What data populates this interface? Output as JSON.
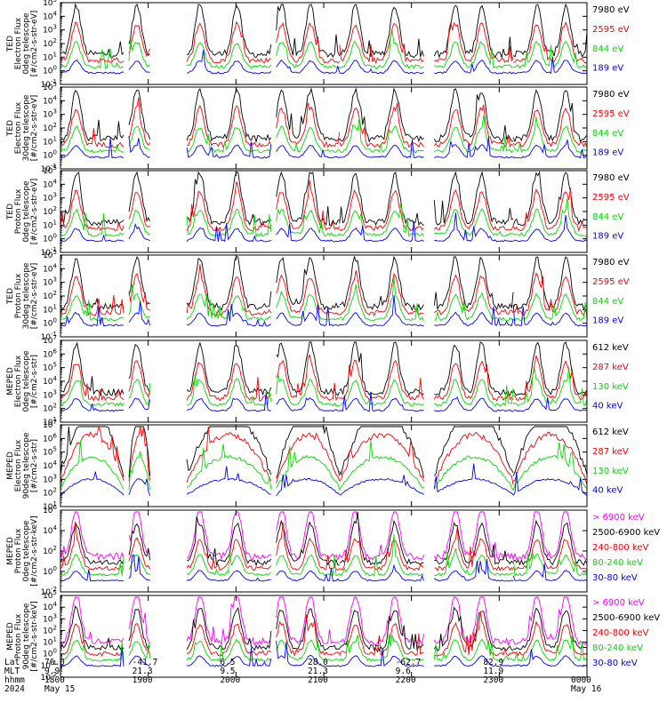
{
  "chart_data": [
    {
      "type": "line",
      "ylabel": [
        "TED",
        "Electron Flux",
        "0deg telescope",
        "[#/cm2-s-str-eV]"
      ],
      "ylim_exp": [
        -1,
        5
      ],
      "log_scale": true,
      "legend_placement": "right",
      "series": [
        {
          "name": "7980 eV",
          "color": "#000000"
        },
        {
          "name": "2595 eV",
          "color": "#ff0000"
        },
        {
          "name": "844 eV",
          "color": "#00dd00"
        },
        {
          "name": "189 eV",
          "color": "#0000ff"
        }
      ]
    },
    {
      "type": "line",
      "ylabel": [
        "TED",
        "Electron Flux",
        "30deg telescope",
        "[#/cm2-s-str-eV]"
      ],
      "ylim_exp": [
        -1,
        5
      ],
      "log_scale": true,
      "legend_placement": "right",
      "series": [
        {
          "name": "7980 eV",
          "color": "#000000"
        },
        {
          "name": "2595 eV",
          "color": "#ff0000"
        },
        {
          "name": "844 eV",
          "color": "#00dd00"
        },
        {
          "name": "189 eV",
          "color": "#0000ff"
        }
      ]
    },
    {
      "type": "line",
      "ylabel": [
        "TED",
        "Proton Flux",
        "0deg telescope",
        "[#/cm2-s-str-eV]"
      ],
      "ylim_exp": [
        -1,
        5
      ],
      "log_scale": true,
      "legend_placement": "right",
      "series": [
        {
          "name": "7980 eV",
          "color": "#000000"
        },
        {
          "name": "2595 eV",
          "color": "#ff0000"
        },
        {
          "name": "844 eV",
          "color": "#00dd00"
        },
        {
          "name": "189 eV",
          "color": "#0000ff"
        }
      ]
    },
    {
      "type": "line",
      "ylabel": [
        "TED",
        "Proton Flux",
        "30deg telescope",
        "[#/cm2-s-str-eV]"
      ],
      "ylim_exp": [
        -1,
        5
      ],
      "log_scale": true,
      "legend_placement": "right",
      "series": [
        {
          "name": "7980 eV",
          "color": "#000000"
        },
        {
          "name": "2595 eV",
          "color": "#ff0000"
        },
        {
          "name": "844 eV",
          "color": "#00dd00"
        },
        {
          "name": "189 eV",
          "color": "#0000ff"
        }
      ]
    },
    {
      "type": "line",
      "ylabel": [
        "MEPED",
        "Electron Flux",
        "0deg telescope",
        "[#/cm2-s-str]"
      ],
      "ylim_exp": [
        1,
        7
      ],
      "log_scale": true,
      "legend_placement": "right",
      "series": [
        {
          "name": "612 keV",
          "color": "#000000"
        },
        {
          "name": "287 keV",
          "color": "#ff0000"
        },
        {
          "name": "130 keV",
          "color": "#00dd00"
        },
        {
          "name": "40 keV",
          "color": "#0000ff"
        }
      ]
    },
    {
      "type": "line",
      "ylabel": [
        "MEPED",
        "Electron Flux",
        "90deg telescope",
        "[#/cm2-s-str]"
      ],
      "ylim_exp": [
        1,
        7
      ],
      "log_scale": true,
      "legend_placement": "right",
      "series": [
        {
          "name": "612 keV",
          "color": "#000000"
        },
        {
          "name": "287 keV",
          "color": "#ff0000"
        },
        {
          "name": "130 keV",
          "color": "#00dd00"
        },
        {
          "name": "40 keV",
          "color": "#0000ff"
        }
      ]
    },
    {
      "type": "line",
      "ylabel": [
        "MEPED",
        "Proton Flux",
        "0deg telescope",
        "[#/cm2-s-str-keV]"
      ],
      "ylim_exp": [
        -2,
        6
      ],
      "ytick_step": 2,
      "log_scale": true,
      "legend_placement": "right",
      "series": [
        {
          "name": "> 6900 keV",
          "color": "#ff00ff"
        },
        {
          "name": "2500-6900 keV",
          "color": "#000000"
        },
        {
          "name": "240-800 keV",
          "color": "#ff0000"
        },
        {
          "name": "80-240 keV",
          "color": "#00dd00"
        },
        {
          "name": "30-80 keV",
          "color": "#0000ff"
        }
      ]
    },
    {
      "type": "line",
      "ylabel": [
        "MEPED",
        "Proton Flux",
        "90deg telescope",
        "[#/cm2-s-str-keV]"
      ],
      "ylim_exp": [
        -2,
        5
      ],
      "log_scale": true,
      "legend_placement": "right",
      "series": [
        {
          "name": "> 6900 keV",
          "color": "#ff00ff"
        },
        {
          "name": "2500-6900 keV",
          "color": "#000000"
        },
        {
          "name": "240-800 keV",
          "color": "#ff0000"
        },
        {
          "name": "80-240 keV",
          "color": "#00dd00"
        },
        {
          "name": "30-80 keV",
          "color": "#0000ff"
        }
      ]
    }
  ],
  "x_axis": {
    "row_labels": [
      "Lat",
      "MLT",
      "hhmm",
      "2024"
    ],
    "ticks": [
      {
        "lat": "76.0",
        "mlt": "9.9",
        "hhmm": "1800",
        "date": "May 15"
      },
      {
        "lat": "-41.7",
        "mlt": "21.3",
        "hhmm": "1900",
        "date": ""
      },
      {
        "lat": "6.5",
        "mlt": "9.5",
        "hhmm": "2000",
        "date": ""
      },
      {
        "lat": "28.0",
        "mlt": "21.3",
        "hhmm": "2100",
        "date": ""
      },
      {
        "lat": "-62.7",
        "mlt": "9.6",
        "hhmm": "2200",
        "date": ""
      },
      {
        "lat": "82.9",
        "mlt": "11.9",
        "hhmm": "2300",
        "date": ""
      },
      {
        "lat": "",
        "mlt": "",
        "hhmm": "0000",
        "date": "May 16"
      }
    ]
  }
}
